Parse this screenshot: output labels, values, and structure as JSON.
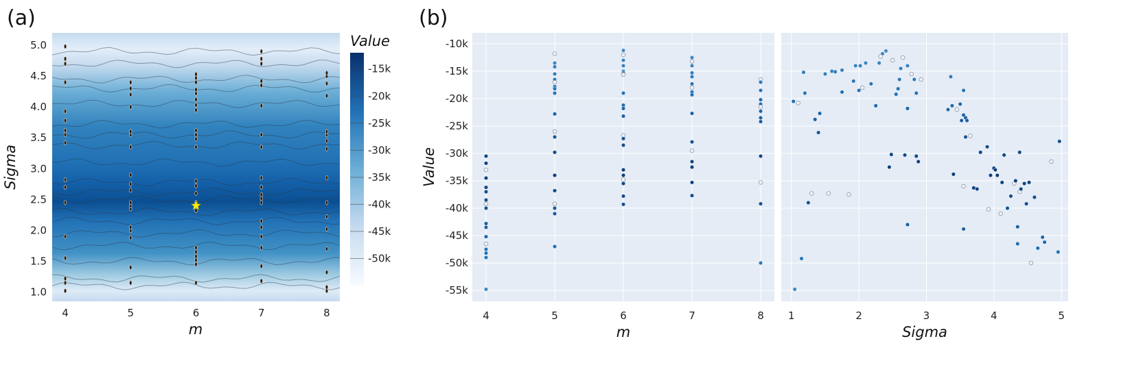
{
  "panel_labels": [
    "(a)",
    "(b)"
  ],
  "colors": {
    "plot_bg": "#e5ecf6",
    "grid": "#ffffff",
    "colorscale_light": "#f7fbff",
    "colorscale_dark": "#08306b",
    "star": "#ffee00"
  },
  "chart_data": [
    {
      "type": "heatmap",
      "subtype": "contour",
      "xlabel": "m",
      "ylabel": "Sigma",
      "xlim": [
        3.8,
        8.2
      ],
      "ylim": [
        0.85,
        5.2
      ],
      "xticks": [
        "4",
        "5",
        "6",
        "7",
        "8"
      ],
      "yticks": [
        "1.0",
        "1.5",
        "2.0",
        "2.5",
        "3.0",
        "3.5",
        "4.0",
        "4.5",
        "5.0"
      ],
      "colorbar": {
        "title": "Value",
        "range": [
          -55000,
          -12000
        ],
        "ticks": [
          "-15k",
          "-20k",
          "-25k",
          "-30k",
          "-35k",
          "-40k",
          "-45k",
          "-50k"
        ]
      },
      "trials": [
        {
          "x": 4,
          "y": [
            1.02,
            1.15,
            1.22,
            1.55,
            1.9,
            2.45,
            2.7,
            2.82,
            3.42,
            3.55,
            3.62,
            3.78,
            3.93,
            4.4,
            4.7,
            4.78,
            4.98
          ]
        },
        {
          "x": 5,
          "y": [
            1.15,
            1.4,
            1.88,
            2.0,
            2.05,
            2.35,
            2.4,
            2.45,
            2.65,
            2.75,
            2.9,
            3.35,
            3.55,
            3.6,
            4.0,
            4.2,
            4.3,
            4.4
          ]
        },
        {
          "x": 6,
          "y": [
            1.15,
            1.45,
            1.52,
            1.58,
            1.65,
            1.72,
            2.32,
            2.45,
            2.6,
            2.72,
            2.8,
            3.35,
            3.48,
            3.55,
            3.62,
            3.95,
            4.03,
            4.12,
            4.22,
            4.28,
            4.4,
            4.47,
            4.53
          ]
        },
        {
          "x": 7,
          "y": [
            1.18,
            1.42,
            1.72,
            1.9,
            2.05,
            2.15,
            2.45,
            2.52,
            2.58,
            2.7,
            2.85,
            3.35,
            3.55,
            4.02,
            4.35,
            4.42,
            4.7,
            4.78,
            4.9
          ]
        },
        {
          "x": 8,
          "y": [
            1.02,
            1.08,
            1.32,
            1.7,
            2.02,
            2.22,
            2.45,
            2.85,
            3.32,
            3.45,
            3.55,
            3.6,
            4.18,
            4.38,
            4.5,
            4.55
          ]
        }
      ],
      "best": {
        "m": 6,
        "sigma": 2.4
      }
    },
    {
      "type": "scatter",
      "xlabel": "m",
      "ylabel": "Value",
      "xlim": [
        3.8,
        8.2
      ],
      "ylim": [
        -57000,
        -8000
      ],
      "xticks": [
        "4",
        "5",
        "6",
        "7",
        "8"
      ],
      "yticks": [
        "-10k",
        "-15k",
        "-20k",
        "-25k",
        "-30k",
        "-35k",
        "-40k",
        "-45k",
        "-50k",
        "-55k"
      ],
      "points": [
        {
          "x": 4,
          "y": [
            -30500,
            -31800,
            -33000,
            -34500,
            -36200,
            -37000,
            -38500,
            -39200,
            -40000,
            -42800,
            -43500,
            -45200,
            -46500,
            -47500,
            -48200,
            -49000,
            -54800
          ]
        },
        {
          "x": 5,
          "y": [
            -11800,
            -13500,
            -14200,
            -15500,
            -16500,
            -17000,
            -17800,
            -18200,
            -19000,
            -22800,
            -26000,
            -27000,
            -29800,
            -34000,
            -36800,
            -39200,
            -40000,
            -41000,
            -47000
          ]
        },
        {
          "x": 6,
          "y": [
            -11200,
            -12000,
            -13000,
            -14000,
            -15000,
            -15300,
            -15600,
            -19000,
            -21200,
            -21800,
            -23200,
            -26700,
            -27300,
            -28500,
            -33000,
            -34000,
            -34800,
            -35500,
            -37800,
            -39300
          ]
        },
        {
          "x": 7,
          "y": [
            -12500,
            -13200,
            -14000,
            -15300,
            -16000,
            -17300,
            -18000,
            -18800,
            -19300,
            -22700,
            -27900,
            -29500,
            -31500,
            -32500,
            -35300,
            -37700
          ]
        },
        {
          "x": 8,
          "y": [
            -16500,
            -17000,
            -18500,
            -20200,
            -21000,
            -21500,
            -22300,
            -23500,
            -24200,
            -30500,
            -35300,
            -39200,
            -50000
          ]
        }
      ]
    },
    {
      "type": "scatter",
      "xlabel": "Sigma",
      "ylabel": "",
      "xlim": [
        0.85,
        5.1
      ],
      "ylim": [
        -57000,
        -8000
      ],
      "xticks": [
        "1",
        "2",
        "3",
        "4",
        "5"
      ],
      "points": [
        {
          "x": 1.03,
          "y": -20500
        },
        {
          "x": 1.05,
          "y": -54800
        },
        {
          "x": 1.1,
          "y": -20800
        },
        {
          "x": 1.15,
          "y": -49200
        },
        {
          "x": 1.18,
          "y": -15200
        },
        {
          "x": 1.2,
          "y": -19000
        },
        {
          "x": 1.25,
          "y": -39000
        },
        {
          "x": 1.3,
          "y": -37300
        },
        {
          "x": 1.35,
          "y": -23800
        },
        {
          "x": 1.4,
          "y": -26200
        },
        {
          "x": 1.42,
          "y": -22700
        },
        {
          "x": 1.5,
          "y": -15500
        },
        {
          "x": 1.55,
          "y": -37300
        },
        {
          "x": 1.6,
          "y": -15000
        },
        {
          "x": 1.65,
          "y": -15100
        },
        {
          "x": 1.75,
          "y": -14800
        },
        {
          "x": 1.75,
          "y": -18800
        },
        {
          "x": 1.85,
          "y": -37500
        },
        {
          "x": 1.92,
          "y": -16800
        },
        {
          "x": 1.95,
          "y": -14000
        },
        {
          "x": 2.0,
          "y": -18500
        },
        {
          "x": 2.02,
          "y": -14000
        },
        {
          "x": 2.05,
          "y": -18000
        },
        {
          "x": 2.1,
          "y": -13500
        },
        {
          "x": 2.18,
          "y": -17300
        },
        {
          "x": 2.25,
          "y": -21300
        },
        {
          "x": 2.3,
          "y": -13500
        },
        {
          "x": 2.32,
          "y": -12300
        },
        {
          "x": 2.35,
          "y": -11800
        },
        {
          "x": 2.4,
          "y": -11300
        },
        {
          "x": 2.45,
          "y": -32500
        },
        {
          "x": 2.48,
          "y": -30200
        },
        {
          "x": 2.5,
          "y": -13000
        },
        {
          "x": 2.55,
          "y": -19200
        },
        {
          "x": 2.58,
          "y": -18200
        },
        {
          "x": 2.6,
          "y": -16500
        },
        {
          "x": 2.62,
          "y": -14500
        },
        {
          "x": 2.65,
          "y": -12500
        },
        {
          "x": 2.68,
          "y": -30300
        },
        {
          "x": 2.72,
          "y": -14000
        },
        {
          "x": 2.72,
          "y": -21800
        },
        {
          "x": 2.72,
          "y": -43000
        },
        {
          "x": 2.78,
          "y": -15500
        },
        {
          "x": 2.82,
          "y": -16500
        },
        {
          "x": 2.85,
          "y": -19000
        },
        {
          "x": 2.85,
          "y": -30500
        },
        {
          "x": 2.88,
          "y": -31500
        },
        {
          "x": 2.92,
          "y": -16500
        },
        {
          "x": 3.32,
          "y": -22000
        },
        {
          "x": 3.36,
          "y": -16000
        },
        {
          "x": 3.38,
          "y": -21300
        },
        {
          "x": 3.4,
          "y": -33800
        },
        {
          "x": 3.45,
          "y": -22000
        },
        {
          "x": 3.5,
          "y": -21000
        },
        {
          "x": 3.52,
          "y": -24000
        },
        {
          "x": 3.55,
          "y": -18500
        },
        {
          "x": 3.55,
          "y": -23000
        },
        {
          "x": 3.55,
          "y": -36000
        },
        {
          "x": 3.55,
          "y": -43800
        },
        {
          "x": 3.58,
          "y": -23500
        },
        {
          "x": 3.58,
          "y": -27000
        },
        {
          "x": 3.6,
          "y": -24000
        },
        {
          "x": 3.65,
          "y": -26800
        },
        {
          "x": 3.7,
          "y": -36300
        },
        {
          "x": 3.75,
          "y": -36500
        },
        {
          "x": 3.8,
          "y": -29800
        },
        {
          "x": 3.9,
          "y": -28800
        },
        {
          "x": 3.92,
          "y": -40200
        },
        {
          "x": 3.95,
          "y": -34000
        },
        {
          "x": 4.0,
          "y": -32700
        },
        {
          "x": 4.02,
          "y": -33000
        },
        {
          "x": 4.05,
          "y": -34000
        },
        {
          "x": 4.1,
          "y": -41000
        },
        {
          "x": 4.12,
          "y": -35300
        },
        {
          "x": 4.15,
          "y": -30300
        },
        {
          "x": 4.2,
          "y": -40000
        },
        {
          "x": 4.25,
          "y": -37800
        },
        {
          "x": 4.3,
          "y": -35500
        },
        {
          "x": 4.32,
          "y": -35000
        },
        {
          "x": 4.35,
          "y": -43400
        },
        {
          "x": 4.35,
          "y": -46500
        },
        {
          "x": 4.38,
          "y": -29800
        },
        {
          "x": 4.38,
          "y": -37000
        },
        {
          "x": 4.4,
          "y": -36500
        },
        {
          "x": 4.45,
          "y": -35500
        },
        {
          "x": 4.48,
          "y": -39200
        },
        {
          "x": 4.52,
          "y": -35300
        },
        {
          "x": 4.55,
          "y": -50000
        },
        {
          "x": 4.6,
          "y": -38000
        },
        {
          "x": 4.65,
          "y": -47300
        },
        {
          "x": 4.72,
          "y": -45300
        },
        {
          "x": 4.75,
          "y": -46200
        },
        {
          "x": 4.85,
          "y": -31500
        },
        {
          "x": 4.95,
          "y": -48000
        },
        {
          "x": 4.97,
          "y": -27800
        }
      ]
    }
  ]
}
